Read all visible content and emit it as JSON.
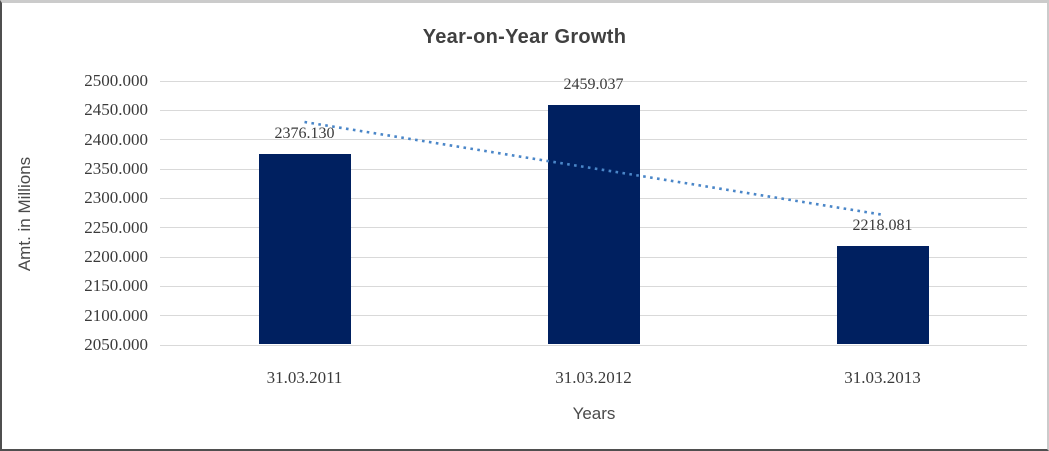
{
  "chart_data": {
    "type": "bar",
    "title": "Year-on-Year Growth",
    "xlabel": "Years",
    "ylabel": "Amt. in Millions",
    "categories": [
      "31.03.2011",
      "31.03.2012",
      "31.03.2013"
    ],
    "values": [
      2376.13,
      2459.037,
      2218.081
    ],
    "data_labels": [
      "2376.130",
      "2459.037",
      "2218.081"
    ],
    "ylim": [
      2050,
      2500
    ],
    "ytick_step": 50,
    "ytick_labels": [
      "2050.000",
      "2100.000",
      "2150.000",
      "2200.000",
      "2250.000",
      "2300.000",
      "2350.000",
      "2400.000",
      "2450.000",
      "2500.000"
    ],
    "grid": "horizontal",
    "legend": "none",
    "bar_color": "#002060",
    "trendline": {
      "type": "linear",
      "style": "dotted",
      "color": "#4A86C8",
      "values": [
        2430.107,
        2351.083,
        2272.058
      ]
    }
  }
}
